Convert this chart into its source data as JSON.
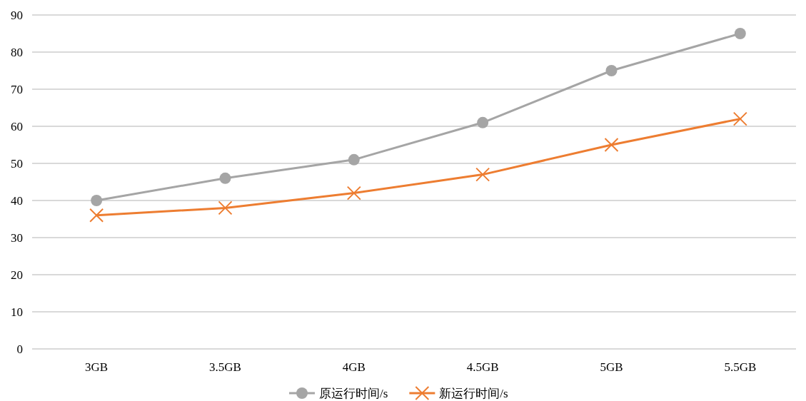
{
  "chart_data": {
    "type": "line",
    "categories": [
      "3GB",
      "3.5GB",
      "4GB",
      "4.5GB",
      "5GB",
      "5.5GB"
    ],
    "series": [
      {
        "name": "原运行时间/s",
        "color": "#a5a5a5",
        "marker": "circle",
        "values": [
          40,
          46,
          51,
          61,
          75,
          85
        ]
      },
      {
        "name": "新运行时间/s",
        "color": "#ed7d31",
        "marker": "cross",
        "values": [
          36,
          38,
          42,
          47,
          55,
          62
        ]
      }
    ],
    "ylim": [
      0,
      90
    ],
    "yticks": [
      0,
      10,
      20,
      30,
      40,
      50,
      60,
      70,
      80,
      90
    ],
    "grid": "y",
    "legend": "bottom",
    "line_style": "solid"
  }
}
